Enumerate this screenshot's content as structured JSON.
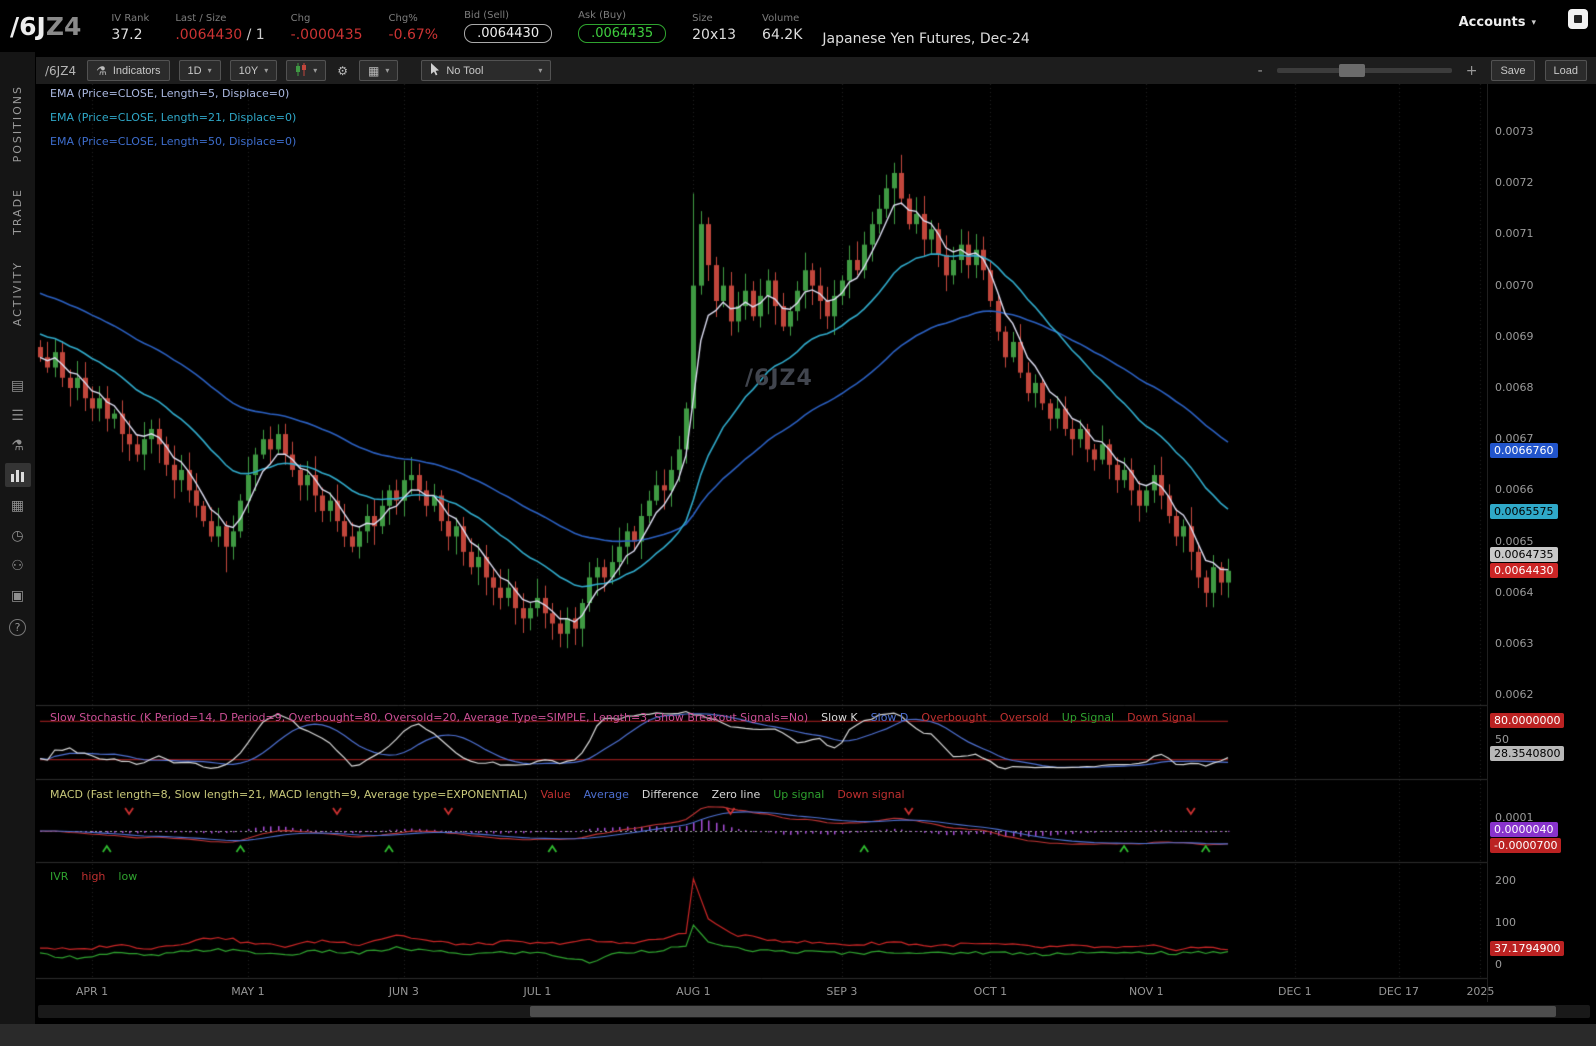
{
  "icons": {
    "flask": "⚗",
    "gear": "⚙",
    "grid": "▦",
    "caret": "▾",
    "minus": "-",
    "plus": "+"
  },
  "header": {
    "symbol_main": "/6J",
    "symbol_suffix": "Z4",
    "fields": [
      {
        "label": "IV Rank",
        "value": "37.2",
        "color": "#dddddd"
      },
      {
        "label": "Last / Size",
        "value": ".0064430",
        "value2": " / 1",
        "value2_color": "#cccccc",
        "color": "#cc3333"
      },
      {
        "label": "Chg",
        "value": "-.0000435",
        "color": "#cc3333"
      },
      {
        "label": "Chg%",
        "value": "-0.67%",
        "color": "#cc3333"
      },
      {
        "label": "Bid (Sell)",
        "value": ".0064430",
        "boxed": true,
        "color": "#eeeeee",
        "border": "#aaaaaa"
      },
      {
        "label": "Ask (Buy)",
        "value": ".0064435",
        "boxed": true,
        "color": "#3fcf3f",
        "border": "#2fa32f"
      },
      {
        "label": "Size",
        "value": "20x13",
        "color": "#dddddd"
      },
      {
        "label": "Volume",
        "value": "64.2K",
        "color": "#dddddd"
      }
    ],
    "description": "Japanese Yen Futures, Dec-24",
    "accounts_label": "Accounts"
  },
  "sidebar": {
    "tabs": [
      {
        "label": "POSITIONS"
      },
      {
        "label": "TRADE"
      },
      {
        "label": "ACTIVITY"
      }
    ],
    "icons": [
      {
        "name": "news-icon",
        "glyph": "▤"
      },
      {
        "name": "list-icon",
        "glyph": "☰"
      },
      {
        "name": "lab-icon",
        "glyph": "⚗"
      },
      {
        "name": "chart-icon",
        "glyph": "",
        "active": true,
        "bars": true
      },
      {
        "name": "grid-icon",
        "glyph": "▦"
      },
      {
        "name": "history-icon",
        "glyph": "◷"
      },
      {
        "name": "people-icon",
        "glyph": "⚇"
      },
      {
        "name": "archive-icon",
        "glyph": "▣"
      },
      {
        "name": "help-icon",
        "glyph": "?",
        "help": true
      }
    ]
  },
  "toolbar": {
    "symbol": "/6JZ4",
    "indicators_label": "Indicators",
    "timeframe": "1D",
    "range": "10Y",
    "tool_label": "No Tool",
    "save_label": "Save",
    "load_label": "Load",
    "zoom_out_label": "-",
    "zoom_in_label": "+"
  },
  "chart": {
    "watermark": "/6JZ4",
    "legend": [
      {
        "text": "EMA (Price=CLOSE, Length=5, Displace=0)",
        "color": "#aab8e0"
      },
      {
        "text": "EMA (Price=CLOSE, Length=21, Displace=0)",
        "color": "#2fa8c8"
      },
      {
        "text": "EMA (Price=CLOSE, Length=50, Displace=0)",
        "color": "#3d6dcc"
      }
    ]
  },
  "studies": {
    "stochastic": {
      "title": "Slow Stochastic (K Period=14, D Period=9, Overbought=80, Oversold=20, Average Type=SIMPLE, Length=3, Show Breakout Signals=No)",
      "title_color": "#cc4f96",
      "legend": [
        {
          "text": "Slow K",
          "color": "#d8d8d8"
        },
        {
          "text": "Slow D",
          "color": "#4d6fd0"
        },
        {
          "text": "Overbought",
          "color": "#c03030"
        },
        {
          "text": "Oversold",
          "color": "#c03030"
        },
        {
          "text": "Up Signal",
          "color": "#2fa32f"
        },
        {
          "text": "Down Signal",
          "color": "#c03030"
        }
      ]
    },
    "macd": {
      "title": "MACD (Fast length=8, Slow length=21, MACD length=9, Average type=EXPONENTIAL)",
      "title_color": "#c8c87a",
      "legend": [
        {
          "text": "Value",
          "color": "#c03030"
        },
        {
          "text": "Average",
          "color": "#4d6fd0"
        },
        {
          "text": "Difference",
          "color": "#d8d8d8"
        },
        {
          "text": "Zero line",
          "color": "#d8d8d8"
        },
        {
          "text": "Up signal",
          "color": "#2fa32f"
        },
        {
          "text": "Down signal",
          "color": "#c03030"
        }
      ]
    },
    "ivr": {
      "title": "IVR",
      "title_color": "#2fa32f",
      "legend": [
        {
          "text": "high",
          "color": "#c03030"
        },
        {
          "text": "low",
          "color": "#2fa32f"
        }
      ]
    }
  },
  "right_axis": {
    "price_ticks": [
      "0.0073",
      "0.0072",
      "0.0071",
      "0.0070",
      "0.0069",
      "0.0068",
      "0.0067",
      "0.0066",
      "0.0065",
      "0.0064",
      "0.0063",
      "0.0062"
    ],
    "ticks": [
      {
        "panel": "stoch",
        "label": "50",
        "value": 50
      },
      {
        "panel": "macd",
        "label": "0.0001",
        "value": 0.0001
      },
      {
        "panel": "ivr",
        "label": "200",
        "value": 200
      },
      {
        "panel": "ivr",
        "label": "100",
        "value": 100
      },
      {
        "panel": "ivr",
        "label": "0",
        "value": 0
      }
    ],
    "bubbles": [
      {
        "panel": "price",
        "text": "0.0066760",
        "value": 0.006676,
        "bg": "#2255cc",
        "fg": "#ffffff",
        "name": "price-bubble-ema50"
      },
      {
        "panel": "price",
        "text": "0.0065575",
        "value": 0.0065575,
        "bg": "#2fa8c8",
        "fg": "#000000",
        "name": "price-bubble-ema21"
      },
      {
        "panel": "price",
        "text": "0.0064735",
        "value": 0.0064735,
        "bg": "#c8c8c8",
        "fg": "#000000",
        "name": "price-bubble-ema5"
      },
      {
        "panel": "price",
        "text": "0.0064430",
        "value": 0.006443,
        "bg": "#cc2626",
        "fg": "#ffffff",
        "name": "price-bubble-last"
      },
      {
        "panel": "stoch",
        "text": "80.0000000",
        "value": 80,
        "bg": "#bb2222",
        "fg": "#ffffff",
        "name": "stoch-bubble-overbought"
      },
      {
        "panel": "stoch",
        "text": "28.3540800",
        "value": 28.35408,
        "bg": "#b8b8b8",
        "fg": "#000000",
        "name": "stoch-bubble-current"
      },
      {
        "panel": "macd",
        "text": "0.0000040",
        "value": 4e-06,
        "bg": "#8833cc",
        "fg": "#ffffff",
        "name": "macd-bubble-value"
      },
      {
        "panel": "macd",
        "text": "-0.0000700",
        "value": -7e-05,
        "bg": "#bb2222",
        "fg": "#ffffff",
        "name": "macd-bubble-hist"
      },
      {
        "panel": "ivr",
        "text": "37.1794900",
        "value": 37.17949,
        "bg": "#bb2222",
        "fg": "#ffffff",
        "name": "ivr-bubble-current"
      }
    ]
  },
  "x_axis": {
    "labels": [
      {
        "text": "APR 1",
        "day": 7
      },
      {
        "text": "MAY 1",
        "day": 28
      },
      {
        "text": "JUN 3",
        "day": 49
      },
      {
        "text": "JUL 1",
        "day": 67
      },
      {
        "text": "AUG 1",
        "day": 88
      },
      {
        "text": "SEP 3",
        "day": 108
      },
      {
        "text": "OCT 1",
        "day": 128
      },
      {
        "text": "NOV 1",
        "day": 149
      },
      {
        "text": "DEC 1",
        "day": 169
      },
      {
        "text": "DEC 17",
        "day": 183
      },
      {
        "text": "2025",
        "day": 194
      }
    ]
  },
  "chart_data": {
    "type": "candlestick",
    "symbol": "/6JZ4",
    "title": "Japanese Yen Futures, Dec-24",
    "aggregation": "1D",
    "range_shown": "APR 2024 to NOV 2024 trading days",
    "y_range": [
      0.0062,
      0.0073
    ],
    "closes": [
      0.00686,
      0.00684,
      0.00687,
      0.00682,
      0.0068,
      0.00682,
      0.00678,
      0.00676,
      0.00678,
      0.00674,
      0.00675,
      0.00671,
      0.00669,
      0.00667,
      0.0067,
      0.00672,
      0.00669,
      0.00665,
      0.00662,
      0.00664,
      0.0066,
      0.00657,
      0.00654,
      0.00651,
      0.00653,
      0.00649,
      0.00652,
      0.00658,
      0.00663,
      0.00667,
      0.0067,
      0.00668,
      0.00671,
      0.00667,
      0.00664,
      0.00661,
      0.00663,
      0.00659,
      0.00656,
      0.00658,
      0.00654,
      0.00651,
      0.00649,
      0.00652,
      0.00655,
      0.00653,
      0.00657,
      0.0066,
      0.00658,
      0.00662,
      0.00663,
      0.0066,
      0.00657,
      0.00659,
      0.00654,
      0.00651,
      0.00653,
      0.00648,
      0.00645,
      0.00647,
      0.00643,
      0.00641,
      0.00639,
      0.00641,
      0.00637,
      0.00635,
      0.00637,
      0.00639,
      0.00636,
      0.00634,
      0.00632,
      0.00635,
      0.00633,
      0.00638,
      0.00643,
      0.00645,
      0.00643,
      0.00646,
      0.00649,
      0.00652,
      0.0065,
      0.00655,
      0.00658,
      0.00661,
      0.0066,
      0.00664,
      0.00668,
      0.00676,
      0.007,
      0.00712,
      0.00704,
      0.00697,
      0.007,
      0.00693,
      0.00696,
      0.00699,
      0.00694,
      0.00698,
      0.00701,
      0.00696,
      0.00692,
      0.00695,
      0.00699,
      0.00703,
      0.007,
      0.00697,
      0.00694,
      0.00698,
      0.00701,
      0.00705,
      0.00703,
      0.00708,
      0.00712,
      0.00715,
      0.00719,
      0.00722,
      0.00717,
      0.00712,
      0.00714,
      0.00709,
      0.00711,
      0.00706,
      0.00702,
      0.00705,
      0.00708,
      0.00704,
      0.00707,
      0.00703,
      0.00697,
      0.00691,
      0.00686,
      0.00689,
      0.00683,
      0.00679,
      0.00681,
      0.00677,
      0.00674,
      0.00676,
      0.00672,
      0.0067,
      0.00672,
      0.00668,
      0.00666,
      0.00669,
      0.00665,
      0.00662,
      0.00664,
      0.0066,
      0.00657,
      0.0066,
      0.00663,
      0.00659,
      0.00655,
      0.00651,
      0.00653,
      0.00648,
      0.00643,
      0.0064,
      0.00645,
      0.00642,
      0.006443
    ],
    "wick_overrides": {
      "25": [
        0.00654,
        0.00644
      ],
      "88": [
        0.00718,
        0.00672
      ],
      "115": [
        0.00724,
        0.00712
      ]
    },
    "candle_colors": {
      "up": "#3f9a43",
      "down": "#c2463c"
    },
    "ema_lengths": [
      5,
      21,
      50
    ],
    "ema_colors": {
      "ema5": "#dcdcf0",
      "ema21": "#2fa8c8",
      "ema50": "#2a5fc0"
    },
    "stochastic": {
      "k_period": 14,
      "d_period": 9,
      "overbought": 80,
      "oversold": 20,
      "length": 3,
      "current_slow_k": 28.35408,
      "k_color": "#d8d8d8",
      "d_color": "#4d6fd0",
      "band_color": "#b22222"
    },
    "macd": {
      "fast_length": 8,
      "slow_length": 21,
      "macd_length": 9,
      "current_value": 4e-06,
      "current_difference": -7e-05,
      "hist_color": "#a64dd6",
      "value_color": "#c03434",
      "avg_color": "#4d6fd0",
      "up_signal_days": [
        9,
        27,
        47,
        69,
        111,
        146,
        157
      ],
      "down_signal_days": [
        12,
        40,
        55,
        93,
        117,
        155
      ],
      "up_color": "#2fbb2f",
      "down_color": "#cc3030"
    },
    "ivr": {
      "current": 37.17949,
      "high_color": "#cc2626",
      "low_color": "#2fa32f",
      "waypoints": [
        [
          0,
          42,
          25
        ],
        [
          5,
          35,
          18
        ],
        [
          10,
          48,
          28
        ],
        [
          15,
          40,
          22
        ],
        [
          20,
          55,
          32
        ],
        [
          24,
          68,
          38
        ],
        [
          28,
          52,
          30
        ],
        [
          33,
          45,
          25
        ],
        [
          38,
          58,
          33
        ],
        [
          43,
          50,
          28
        ],
        [
          48,
          72,
          40
        ],
        [
          53,
          55,
          32
        ],
        [
          58,
          48,
          26
        ],
        [
          63,
          55,
          30
        ],
        [
          68,
          50,
          28
        ],
        [
          74,
          58,
          6
        ],
        [
          78,
          52,
          30
        ],
        [
          83,
          60,
          35
        ],
        [
          87,
          75,
          45
        ],
        [
          88,
          205,
          95
        ],
        [
          90,
          110,
          55
        ],
        [
          93,
          75,
          40
        ],
        [
          96,
          65,
          35
        ],
        [
          100,
          58,
          32
        ],
        [
          105,
          52,
          30
        ],
        [
          110,
          48,
          28
        ],
        [
          115,
          55,
          32
        ],
        [
          120,
          45,
          27
        ],
        [
          125,
          50,
          30
        ],
        [
          130,
          48,
          29
        ],
        [
          135,
          42,
          26
        ],
        [
          140,
          45,
          30
        ],
        [
          145,
          40,
          27
        ],
        [
          150,
          44,
          31
        ],
        [
          153,
          38,
          26
        ],
        [
          156,
          42,
          29
        ],
        [
          160,
          37.2,
          33
        ]
      ]
    }
  }
}
